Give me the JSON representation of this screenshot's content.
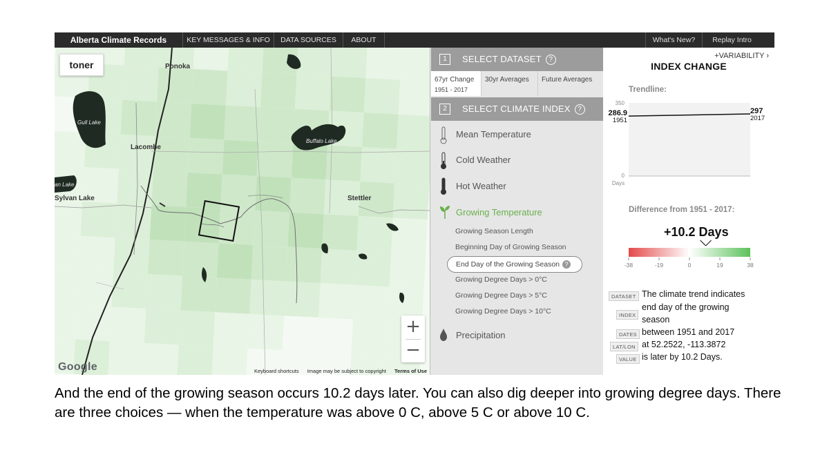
{
  "nav": {
    "brand": "Alberta Climate Records",
    "links": [
      "KEY MESSAGES & INFO",
      "DATA SOURCES",
      "ABOUT"
    ],
    "right_links": [
      "What's New?",
      "Replay Intro"
    ]
  },
  "map": {
    "style_button": "toner",
    "places": [
      "Ponoka",
      "Lacombe",
      "Sylvan Lake",
      "Stettler"
    ],
    "lakes": [
      "Gull Lake",
      "Buffalo Lake",
      "an Lake"
    ],
    "zoom_in": "+",
    "zoom_out": "−",
    "google_logo": "Google",
    "attribution": [
      "Keyboard shortcuts",
      "Image may be subject to copyright",
      "Terms of Use"
    ]
  },
  "panel": {
    "step1": {
      "num": "1",
      "title": "SELECT DATASET",
      "help": "?"
    },
    "tabs": [
      {
        "label": "67yr Change",
        "sub": "1951 - 2017"
      },
      {
        "label": "30yr Averages",
        "sub": ""
      },
      {
        "label": "Future Averages",
        "sub": ""
      }
    ],
    "step2": {
      "num": "2",
      "title": "SELECT CLIMATE INDEX",
      "help": "?"
    },
    "indices": [
      {
        "label": "Mean Temperature",
        "icon": "thermometer-outline-icon"
      },
      {
        "label": "Cold Weather",
        "icon": "thermometer-low-icon"
      },
      {
        "label": "Hot Weather",
        "icon": "thermometer-high-icon"
      },
      {
        "label": "Growing Temperature",
        "icon": "sprout-icon"
      }
    ],
    "growing_subindices": [
      "Growing Season Length",
      "Beginning Day of Growing Season",
      "End Day of the Growing Season",
      "Growing Degree Days > 0°C",
      "Growing Degree Days > 5°C",
      "Growing Degree Days > 10°C"
    ],
    "selected_help": "?",
    "precipitation": {
      "label": "Precipitation",
      "icon": "droplet-icon"
    }
  },
  "index_change": {
    "variability": "+VARIABILITY ›",
    "title": "INDEX CHANGE",
    "trendline_label": "Trendline:",
    "trend": {
      "y_max_label": "350",
      "y_min_label": "0",
      "y_unit": "Days",
      "start_value": "286.9",
      "start_year": "1951",
      "end_value": "297",
      "end_year": "2017",
      "start_num": 286.9,
      "end_num": 297,
      "y_max": 350
    },
    "difference_label": "Difference from 1951 - 2017:",
    "difference_value": "+10.2  Days",
    "difference_num": 10.2,
    "scale_ticks": [
      "-38",
      "-19",
      "0",
      "19",
      "38"
    ],
    "scale_min": -38,
    "scale_max": 38,
    "colors": {
      "negative": "#e34a4a",
      "neutral": "#ffffff",
      "positive": "#5cc25c",
      "accent": "#6ab04c"
    },
    "details": [
      {
        "key": "DATASET",
        "value": "The climate trend indicates"
      },
      {
        "key": "",
        "value": "end day of the growing"
      },
      {
        "key": "INDEX",
        "value": "season"
      },
      {
        "key": "DATES",
        "value": "between 1951 and 2017"
      },
      {
        "key": "LAT/LON",
        "value": "at 52.2522, -113.3872"
      },
      {
        "key": "VALUE",
        "value": "is later by 10.2 Days."
      }
    ]
  },
  "caption": "And the end of the growing season occurs 10.2 days later. You can also dig deeper into growing degree days. There are three choices — when the temperature was above 0 C,  above 5 C or above 10 C."
}
